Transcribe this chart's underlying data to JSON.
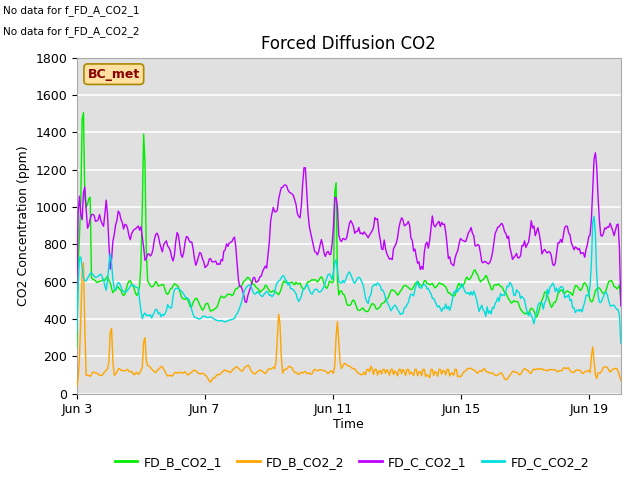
{
  "title": "Forced Diffusion CO2",
  "ylabel": "CO2 Concentration (ppm)",
  "xlabel": "Time",
  "ylim": [
    0,
    1800
  ],
  "xtick_labels": [
    "Jun 3",
    "Jun 7",
    "Jun 11",
    "Jun 15",
    "Jun 19"
  ],
  "colors": {
    "FD_B_CO2_1": "#00ee00",
    "FD_B_CO2_2": "#ffa500",
    "FD_C_CO2_1": "#bb00ff",
    "FD_C_CO2_2": "#00dddd"
  },
  "no_data_text_1": "No data for f_FD_A_CO2_1",
  "no_data_text_2": "No data for f_FD_A_CO2_2",
  "bc_met_label": "BC_met",
  "bc_met_facecolor": "#ffe0a0",
  "bc_met_edgecolor": "#aa8800",
  "bc_met_text_color": "#880000",
  "plot_bg_color": "#e0e0e0",
  "grid_color": "#ffffff",
  "legend_entries": [
    "FD_B_CO2_1",
    "FD_B_CO2_2",
    "FD_C_CO2_1",
    "FD_C_CO2_2"
  ],
  "seed": 7,
  "n_pts": 408
}
